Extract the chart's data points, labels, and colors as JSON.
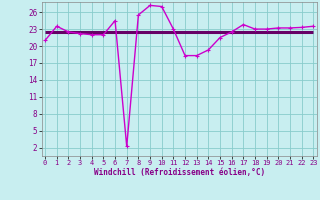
{
  "x": [
    0,
    1,
    2,
    3,
    4,
    5,
    6,
    7,
    8,
    9,
    10,
    11,
    12,
    13,
    14,
    15,
    16,
    17,
    18,
    19,
    20,
    21,
    22,
    23
  ],
  "y_windchill": [
    21.0,
    23.5,
    22.5,
    22.2,
    22.0,
    22.0,
    24.5,
    2.2,
    25.5,
    27.2,
    27.0,
    23.0,
    18.3,
    18.3,
    19.3,
    21.5,
    22.5,
    23.8,
    23.0,
    23.0,
    23.2,
    23.2,
    23.3,
    23.5
  ],
  "y_flat": [
    22.5,
    22.5,
    22.5,
    22.5,
    22.5,
    22.5,
    22.5,
    22.5,
    22.5,
    22.5,
    22.5,
    22.5,
    22.5,
    22.5,
    22.5,
    22.5,
    22.5,
    22.5,
    22.5,
    22.5,
    22.5,
    22.5,
    22.5,
    22.5
  ],
  "bg_color": "#c8eef0",
  "plot_bg": "#c8eef0",
  "grid_color": "#88cccc",
  "line_color": "#cc00cc",
  "flat_color": "#660066",
  "marker": "+",
  "xlabel": "Windchill (Refroidissement éolien,°C)",
  "yticks": [
    2,
    5,
    8,
    11,
    14,
    17,
    20,
    23,
    26
  ],
  "xtick_labels": [
    "0",
    "1",
    "2",
    "3",
    "4",
    "5",
    "6",
    "7",
    "8",
    "9",
    "10",
    "11",
    "12",
    "13",
    "14",
    "15",
    "16",
    "17",
    "18",
    "19",
    "20",
    "21",
    "22",
    "23"
  ],
  "xticks": [
    0,
    1,
    2,
    3,
    4,
    5,
    6,
    7,
    8,
    9,
    10,
    11,
    12,
    13,
    14,
    15,
    16,
    17,
    18,
    19,
    20,
    21,
    22,
    23
  ],
  "xlim": [
    -0.3,
    23.3
  ],
  "ylim": [
    0.5,
    27.8
  ]
}
